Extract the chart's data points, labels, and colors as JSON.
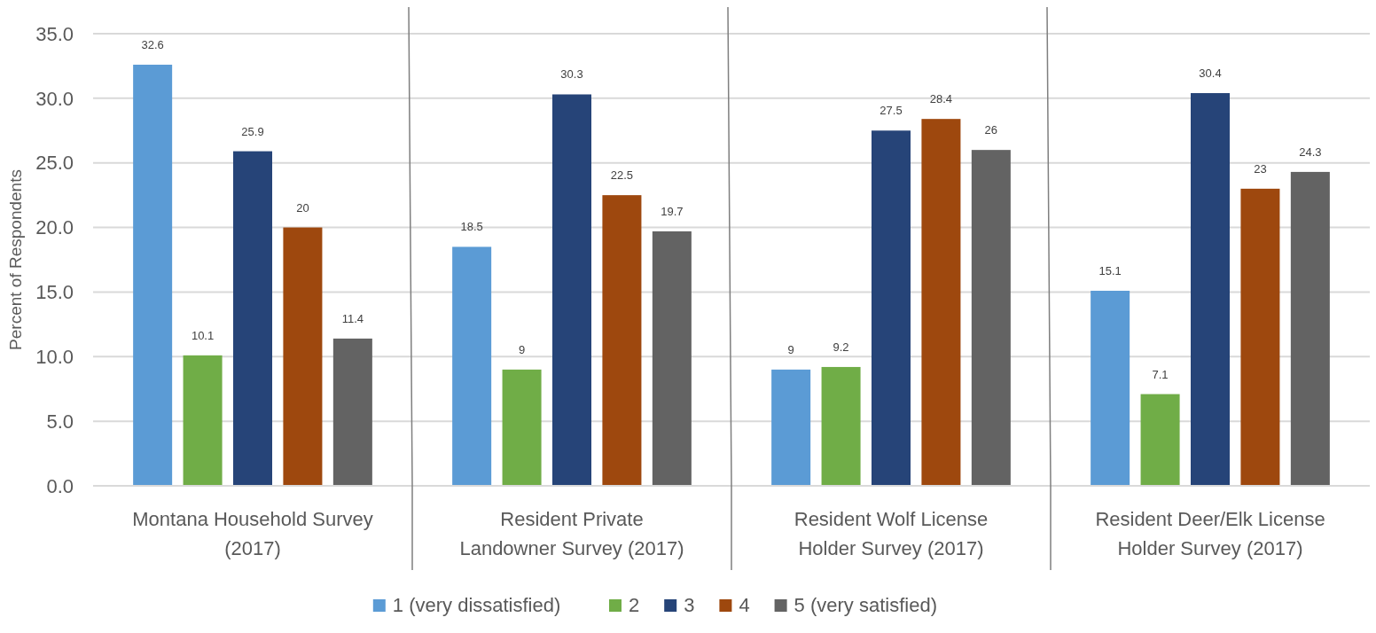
{
  "chart_data": {
    "type": "bar",
    "ylabel": "Percent of Respondents",
    "categories": [
      "Montana Household Survey (2017)",
      "Resident Private Landowner Survey (2017)",
      "Resident Wolf License Holder Survey (2017)",
      "Resident Deer/Elk License Holder Survey (2017)"
    ],
    "series": [
      {
        "name": "1 (very dissatisfied)",
        "color": "#5b9bd5",
        "values": [
          32.6,
          18.5,
          9,
          15.1
        ]
      },
      {
        "name": "2",
        "color": "#70ad47",
        "values": [
          10.1,
          9,
          9.2,
          7.1
        ]
      },
      {
        "name": "3",
        "color": "#264478",
        "values": [
          25.9,
          30.3,
          27.5,
          30.4
        ]
      },
      {
        "name": "4",
        "color": "#9e480e",
        "values": [
          20,
          22.5,
          28.4,
          23
        ]
      },
      {
        "name": "5 (very satisfied)",
        "color": "#636363",
        "values": [
          11.4,
          19.7,
          26,
          24.3
        ]
      }
    ],
    "ylim": [
      0,
      35
    ],
    "yticks": [
      {
        "value": 0,
        "label": "0.0"
      },
      {
        "value": 5,
        "label": "5.0"
      },
      {
        "value": 10,
        "label": "10.0"
      },
      {
        "value": 15,
        "label": "15.0"
      },
      {
        "value": 20,
        "label": "20.0"
      },
      {
        "value": 25,
        "label": "25.0"
      },
      {
        "value": 30,
        "label": "30.0"
      },
      {
        "value": 35,
        "label": "35.0"
      }
    ],
    "grid": "y",
    "legend": "bottom",
    "data_labels": true
  }
}
